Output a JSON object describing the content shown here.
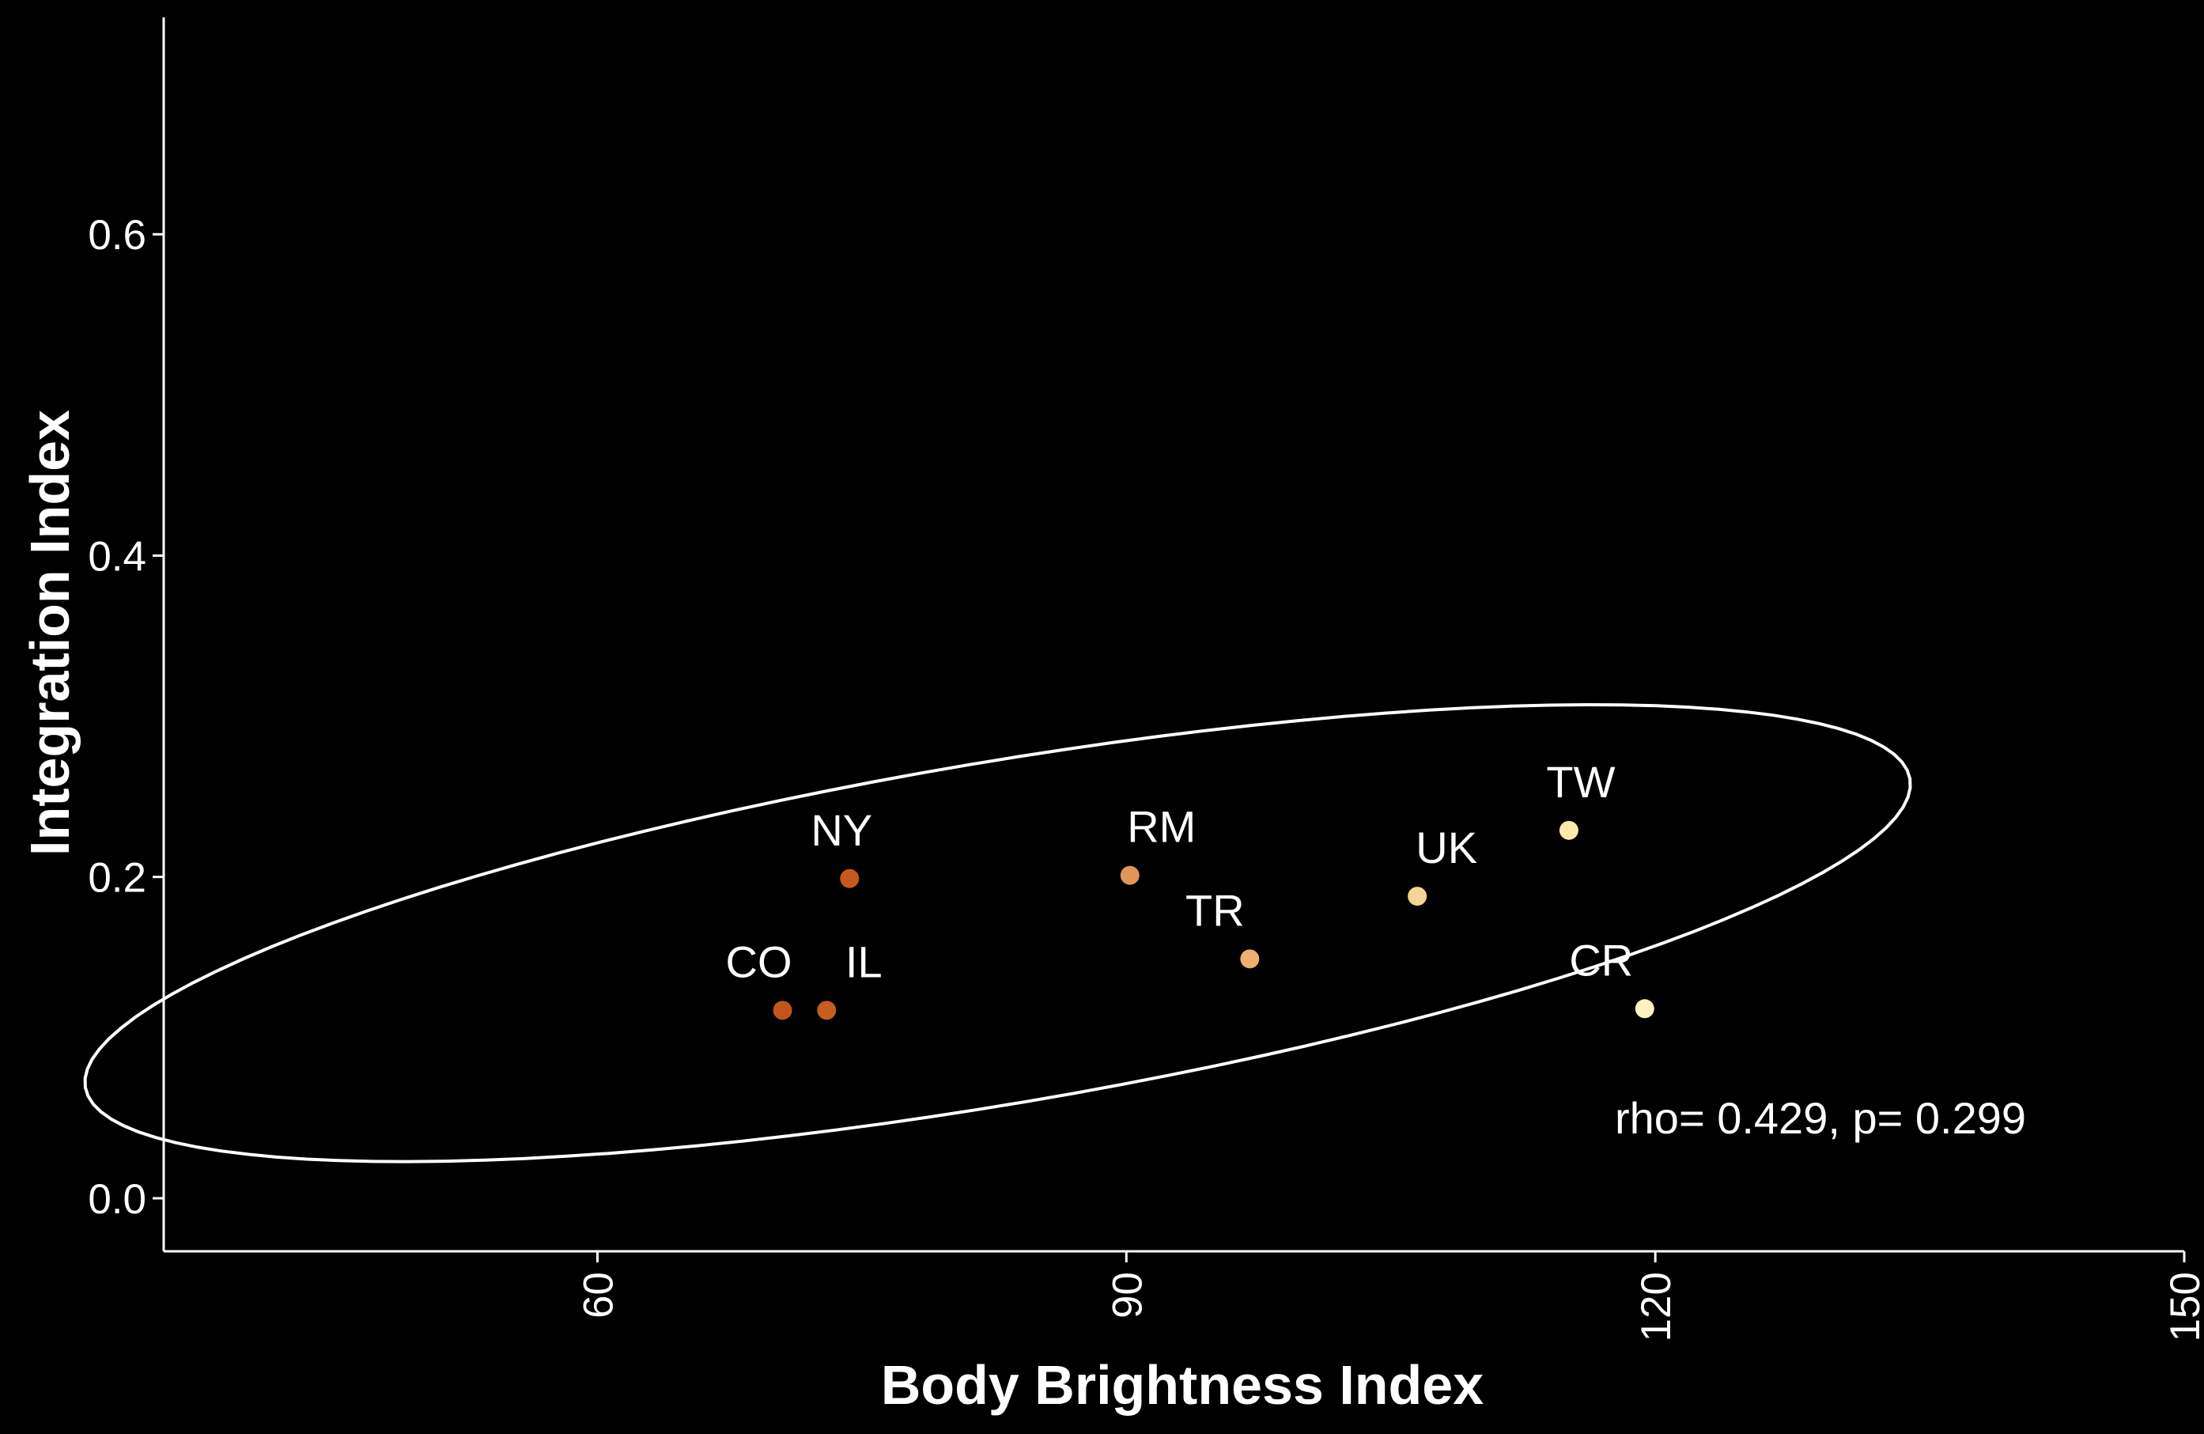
{
  "chart_data": {
    "type": "scatter",
    "title": "",
    "xlabel": "Body Brightness Index",
    "ylabel": "Integration Index",
    "xlim": [
      35.4,
      150
    ],
    "ylim": [
      -0.033,
      0.735
    ],
    "x_ticks": [
      60,
      90,
      120,
      150
    ],
    "y_ticks": [
      0.0,
      0.2,
      0.4,
      0.6
    ],
    "x_tick_labels": [
      "60",
      "90",
      "120",
      "150"
    ],
    "y_tick_labels": [
      "0.0",
      "0.2",
      "0.4",
      "0.6"
    ],
    "grid": false,
    "legend": "none",
    "points": [
      {
        "label": "CO",
        "x": 70.5,
        "y": 0.117,
        "color": "#c0561b"
      },
      {
        "label": "IL",
        "x": 73.0,
        "y": 0.117,
        "color": "#c75d21"
      },
      {
        "label": "NY",
        "x": 74.3,
        "y": 0.199,
        "color": "#c45a1e"
      },
      {
        "label": "RM",
        "x": 90.2,
        "y": 0.201,
        "color": "#e09657"
      },
      {
        "label": "TR",
        "x": 97.0,
        "y": 0.149,
        "color": "#ecb06e"
      },
      {
        "label": "UK",
        "x": 106.5,
        "y": 0.188,
        "color": "#f6d491"
      },
      {
        "label": "TW",
        "x": 115.1,
        "y": 0.229,
        "color": "#fbe8ad"
      },
      {
        "label": "CR",
        "x": 119.4,
        "y": 0.118,
        "color": "#fdf3c0"
      }
    ],
    "ellipse": {
      "center_x": 82.7,
      "center_y": 0.165,
      "stroke": "#ffffff"
    },
    "annotation": "rho= 0.429, p= 0.299",
    "colors": {
      "background": "#000000",
      "foreground": "#ffffff"
    }
  }
}
